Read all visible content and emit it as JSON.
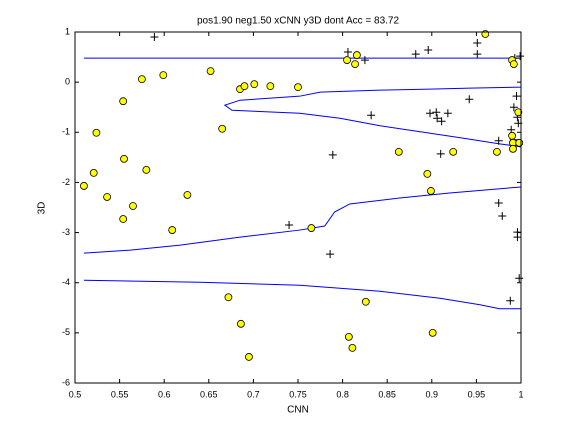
{
  "chart_data": {
    "type": "scatter",
    "title": "pos1.90 neg1.50 xCNN y3D dont Acc = 83.72",
    "xlabel": "CNN",
    "ylabel": "3D",
    "xlim": [
      0.5,
      1
    ],
    "ylim": [
      -6,
      1
    ],
    "xticks": [
      0.5,
      0.55,
      0.6,
      0.65,
      0.7,
      0.75,
      0.8,
      0.85,
      0.9,
      0.95,
      1
    ],
    "yticks": [
      -6,
      -5,
      -4,
      -3,
      -2,
      -1,
      0,
      1
    ],
    "series": [
      {
        "type": "line",
        "color": "#0000ff",
        "x": [
          0.51,
          1.0
        ],
        "values": [
          0.48,
          0.48
        ]
      },
      {
        "type": "line",
        "color": "#0000ff",
        "x": [
          1.0,
          0.943,
          0.898,
          0.842,
          0.775,
          0.752,
          0.685,
          0.668,
          0.676,
          0.752,
          0.797,
          0.842,
          0.887,
          0.932,
          0.976,
          1.0
        ],
        "values": [
          -0.1,
          -0.12,
          -0.14,
          -0.16,
          -0.2,
          -0.28,
          -0.36,
          -0.46,
          -0.56,
          -0.62,
          -0.72,
          -0.87,
          -0.99,
          -1.11,
          -1.23,
          -1.29
        ]
      },
      {
        "type": "line",
        "color": "#0000ff",
        "x": [
          0.51,
          0.562,
          0.618,
          0.685,
          0.752,
          0.78,
          0.791,
          0.808,
          0.864,
          0.92,
          1.0
        ],
        "values": [
          -3.41,
          -3.35,
          -3.25,
          -3.09,
          -2.95,
          -2.87,
          -2.59,
          -2.43,
          -2.31,
          -2.21,
          -2.09
        ]
      },
      {
        "type": "line",
        "color": "#0000ff",
        "x": [
          0.51,
          0.64,
          0.752,
          0.842,
          0.909,
          0.954,
          0.976,
          1.0
        ],
        "values": [
          -3.95,
          -3.99,
          -4.05,
          -4.17,
          -4.31,
          -4.44,
          -4.52,
          -4.52
        ]
      },
      {
        "type": "scatter",
        "marker": "plus",
        "color": "#000000",
        "x": [
          0.589,
          0.806,
          0.825,
          0.832,
          0.789,
          0.74,
          0.786,
          0.882,
          0.896,
          0.898,
          0.905,
          0.906,
          0.911,
          0.918,
          0.91,
          0.942,
          0.951,
          0.951,
          0.975,
          0.975,
          0.979,
          0.988,
          0.993,
          0.999,
          0.992,
          0.996,
          0.995,
          0.996,
          0.996,
          0.998,
          0.997,
          0.989,
          0.992
        ],
        "values": [
          0.9,
          0.6,
          0.44,
          -0.66,
          -1.45,
          -2.85,
          -3.43,
          0.56,
          0.64,
          -0.62,
          -0.6,
          -0.72,
          -0.78,
          -0.62,
          -1.43,
          -0.34,
          0.78,
          0.56,
          -1.17,
          -2.41,
          -2.67,
          -4.36,
          0.48,
          0.52,
          -0.5,
          -0.7,
          -0.28,
          -2.99,
          -3.09,
          -3.91,
          -0.82,
          -0.95,
          -1.15
        ]
      },
      {
        "type": "scatter",
        "marker": "circle",
        "color": "#ffff00",
        "x": [
          0.51,
          0.521,
          0.524,
          0.536,
          0.554,
          0.555,
          0.554,
          0.565,
          0.575,
          0.58,
          0.599,
          0.609,
          0.626,
          0.652,
          0.665,
          0.672,
          0.686,
          0.685,
          0.69,
          0.695,
          0.701,
          0.719,
          0.75,
          0.765,
          0.805,
          0.807,
          0.811,
          0.816,
          0.814,
          0.826,
          0.863,
          0.895,
          0.899,
          0.901,
          0.924,
          0.96,
          0.973,
          0.99,
          0.99,
          0.992,
          0.991,
          0.991,
          0.997,
          0.998
        ],
        "values": [
          -2.07,
          -1.81,
          -1.01,
          -2.29,
          -0.38,
          -1.53,
          -2.73,
          -2.47,
          0.06,
          -1.75,
          0.14,
          -2.95,
          -2.25,
          0.22,
          -0.93,
          -4.29,
          -4.82,
          -0.14,
          -0.08,
          -5.48,
          -0.04,
          -0.08,
          -0.1,
          -2.91,
          0.44,
          -5.08,
          -5.3,
          0.54,
          0.36,
          -4.38,
          -1.39,
          -1.83,
          -2.17,
          -5.0,
          -1.39,
          0.96,
          -1.39,
          -1.07,
          0.44,
          0.36,
          -1.21,
          -1.33,
          -0.6,
          -1.21
        ]
      }
    ]
  }
}
